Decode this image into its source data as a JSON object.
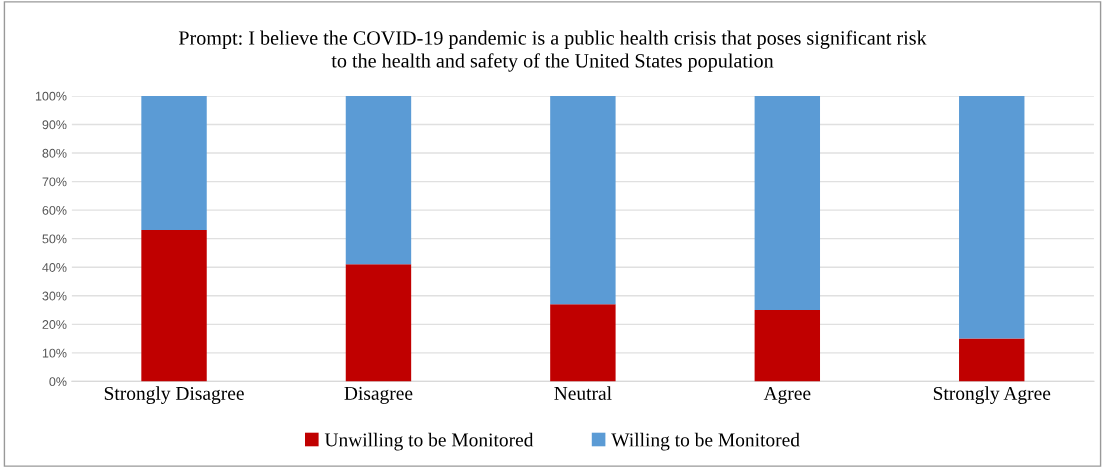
{
  "chart_data": {
    "type": "bar",
    "title": "Prompt: I believe the COVID-19 pandemic is a public health crisis that poses significant risk\nto the health and safety of the United States population",
    "categories": [
      "Strongly Disagree",
      "Disagree",
      "Neutral",
      "Agree",
      "Strongly Agree"
    ],
    "stacked": true,
    "series": [
      {
        "name": "Unwilling to be Monitored",
        "color": "#c00000",
        "values": [
          53,
          41,
          27,
          25,
          15
        ]
      },
      {
        "name": "Willing to be Monitored",
        "color": "#5b9bd5",
        "values": [
          47,
          59,
          73,
          75,
          85
        ]
      }
    ],
    "ylim": [
      0,
      100
    ],
    "yticks": [
      {
        "value": 0,
        "label": "0%"
      },
      {
        "value": 10,
        "label": "10%"
      },
      {
        "value": 20,
        "label": "20%"
      },
      {
        "value": 30,
        "label": "30%"
      },
      {
        "value": 40,
        "label": "40%"
      },
      {
        "value": 50,
        "label": "50%"
      },
      {
        "value": 60,
        "label": "60%"
      },
      {
        "value": 70,
        "label": "70%"
      },
      {
        "value": 80,
        "label": "80%"
      },
      {
        "value": 90,
        "label": "90%"
      },
      {
        "value": 100,
        "label": "100%"
      }
    ],
    "grid": "y",
    "legend": "bottom"
  }
}
